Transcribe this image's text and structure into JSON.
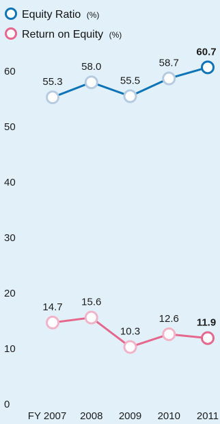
{
  "chart_data": {
    "type": "line",
    "categories": [
      "FY 2007",
      "2008",
      "2009",
      "2010",
      "2011"
    ],
    "x_tick_labels": [
      "FY 2007",
      "2008",
      "2009",
      "2010",
      "2011"
    ],
    "y_ticks": [
      0,
      10,
      20,
      30,
      40,
      50,
      60
    ],
    "ylim": [
      0,
      63
    ],
    "grid": false,
    "legend_position": "top-left",
    "series": [
      {
        "name": "Equity Ratio",
        "unit": "(%)",
        "values": [
          55.3,
          58.0,
          55.5,
          58.7,
          60.7
        ],
        "labels": [
          "55.3",
          "58.0",
          "55.5",
          "58.7",
          "60.7"
        ],
        "color": "#0e74b7",
        "marker_fill_past": "#ffffff",
        "marker_stroke_past": "#b6cbe0"
      },
      {
        "name": "Return on Equity",
        "unit": "(%)",
        "values": [
          14.7,
          15.6,
          10.3,
          12.6,
          11.9
        ],
        "labels": [
          "14.7",
          "15.6",
          "10.3",
          "12.6",
          "11.9"
        ],
        "color": "#e5688c",
        "marker_fill_past": "#ffffff",
        "marker_stroke_past": "#f1b3c7"
      }
    ]
  },
  "colors": {
    "background": "#e2f1f9",
    "text": "#1b1b1b"
  }
}
